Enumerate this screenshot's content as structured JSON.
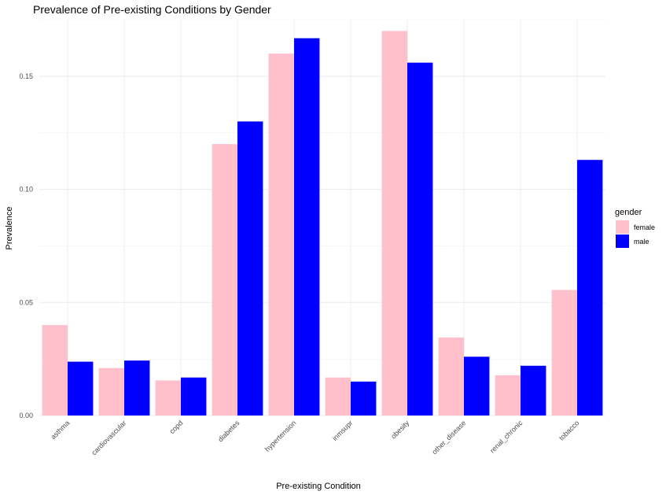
{
  "chart_data": {
    "type": "bar",
    "title": "Prevalence of Pre-existing Conditions by Gender",
    "xlabel": "Pre-existing Condition",
    "ylabel": "Prevalence",
    "categories": [
      "asthma",
      "cardiovascular",
      "copd",
      "diabetes",
      "hypertension",
      "inmsupr",
      "obesity",
      "other_disease",
      "renal_chronic",
      "tobacco"
    ],
    "series": [
      {
        "name": "female",
        "color": "#FFC0CB",
        "values": [
          0.04,
          0.021,
          0.0155,
          0.12,
          0.16,
          0.0168,
          0.17,
          0.0345,
          0.0178,
          0.0555
        ]
      },
      {
        "name": "male",
        "color": "#0000FF",
        "values": [
          0.0238,
          0.0243,
          0.0168,
          0.13,
          0.1668,
          0.015,
          0.156,
          0.026,
          0.022,
          0.113
        ]
      }
    ],
    "ylim": [
      0,
      0.175
    ],
    "yticks": [
      0.0,
      0.05,
      0.1,
      0.15
    ],
    "ytick_labels": [
      "0.00",
      "0.05",
      "0.10",
      "0.15"
    ],
    "legend": {
      "title": "gender",
      "position": "right"
    },
    "grid": true
  }
}
